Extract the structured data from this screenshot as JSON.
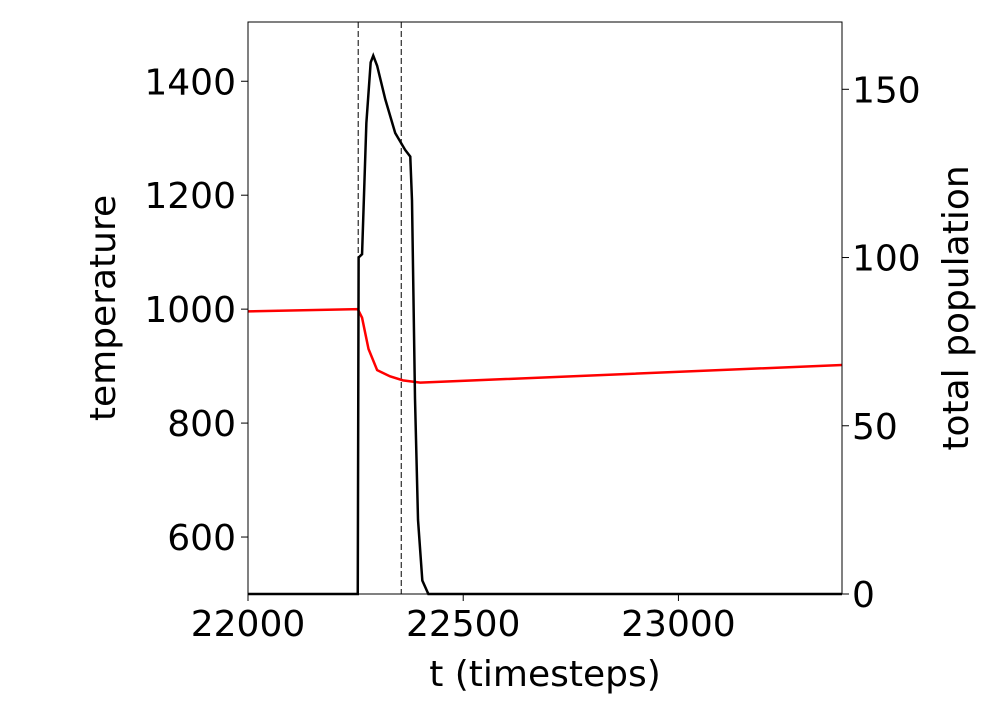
{
  "chart_data": {
    "type": "line",
    "x_label": "t (timesteps)",
    "y_label": "temperature",
    "y2_label": "total population",
    "xlim": [
      22000,
      23380
    ],
    "xticks": [
      22000,
      22500,
      23000
    ],
    "ylim": [
      500,
      1504
    ],
    "yticks": [
      600,
      800,
      1000,
      1200,
      1400
    ],
    "y2lim": [
      0,
      170
    ],
    "y2ticks": [
      0,
      50,
      100,
      150
    ],
    "grid": false,
    "vlines": [
      22256,
      22356
    ],
    "series": [
      {
        "color": "#ff0000",
        "x": [
          22000,
          22255,
          22265,
          22280,
          22300,
          22330,
          22360,
          22400,
          23380
        ],
        "values": [
          996,
          1000,
          985,
          930,
          893,
          882,
          875,
          871,
          902
        ]
      },
      {
        "color": "#000000",
        "axis": "y2",
        "x": [
          22000,
          22255,
          22257,
          22265,
          22275,
          22285,
          22291,
          22300,
          22319,
          22342,
          22365,
          22377,
          22381,
          22388,
          22395,
          22405,
          22419,
          23380
        ],
        "values": [
          0,
          0,
          100,
          101,
          140,
          158,
          160,
          157,
          147,
          137,
          132,
          130,
          117,
          58,
          22,
          4,
          0,
          0
        ]
      }
    ]
  }
}
